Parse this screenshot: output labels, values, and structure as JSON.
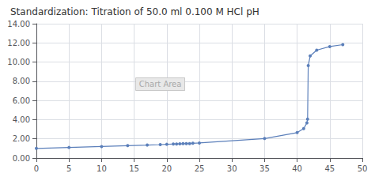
{
  "chart_data": {
    "type": "line",
    "title": "Standardization: Titration of 50.0 ml 0.100 M HCl pH",
    "annotation": "Chart Area",
    "x": [
      0,
      5,
      10,
      14,
      17,
      19,
      20,
      21,
      21.5,
      22,
      22.5,
      23,
      23.5,
      24,
      25,
      35,
      40,
      41,
      41.5,
      41.6,
      41.7,
      42,
      43,
      45,
      47
    ],
    "values": [
      1.0,
      1.1,
      1.2,
      1.29,
      1.35,
      1.4,
      1.43,
      1.46,
      1.47,
      1.48,
      1.5,
      1.51,
      1.51,
      1.54,
      1.57,
      2.03,
      2.65,
      3.06,
      3.66,
      4.06,
      9.64,
      10.64,
      11.24,
      11.62,
      11.82
    ],
    "xlim": [
      0,
      50
    ],
    "ylim": [
      0,
      14
    ],
    "xticks": [
      0,
      5,
      10,
      15,
      20,
      25,
      30,
      35,
      40,
      45,
      50
    ],
    "yticks": [
      {
        "value": 0,
        "label": "0.00"
      },
      {
        "value": 2,
        "label": "2.00"
      },
      {
        "value": 4,
        "label": "4.00"
      },
      {
        "value": 6,
        "label": "6.00"
      },
      {
        "value": 8,
        "label": "8.00"
      },
      {
        "value": 10,
        "label": "10.00"
      },
      {
        "value": 12,
        "label": "12.00"
      },
      {
        "value": 14,
        "label": "14.00"
      }
    ],
    "color": "#5b7fba",
    "marker": "circle",
    "grid": true
  }
}
